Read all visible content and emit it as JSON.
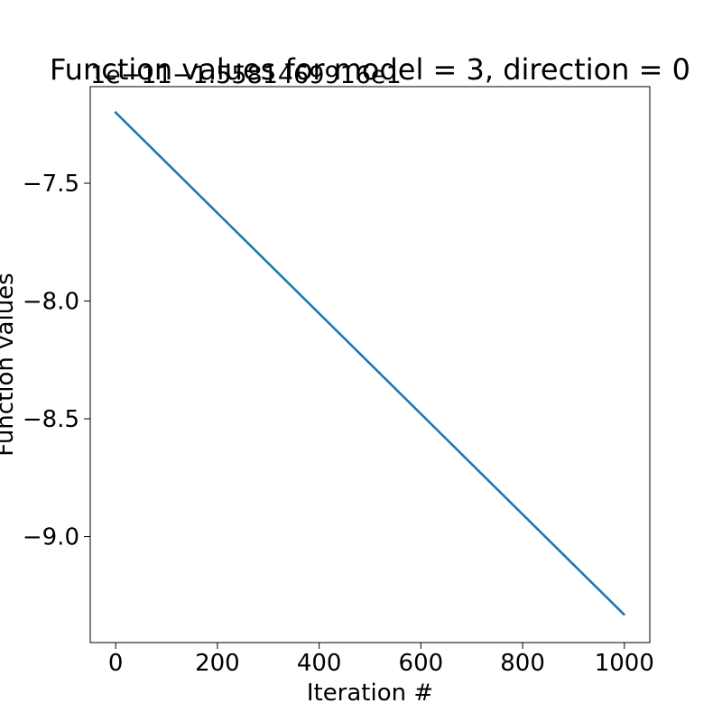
{
  "chart_data": {
    "type": "line",
    "title": "Function values for model = 3, direction = 0",
    "xlabel": "Iteration #",
    "ylabel": "Function values",
    "offset_text": "1e−11−1.5581469916e1",
    "xlim": [
      -50,
      1050
    ],
    "ylim": [
      -9.45,
      -7.09
    ],
    "x_ticks": [
      0,
      200,
      400,
      600,
      800,
      1000
    ],
    "x_tick_labels": [
      "0",
      "200",
      "400",
      "600",
      "800",
      "1000"
    ],
    "y_ticks": [
      -7.5,
      -8.0,
      -8.5,
      -9.0
    ],
    "y_tick_labels": [
      "−7.5",
      "−8.0",
      "−8.5",
      "−9.0"
    ],
    "grid": false,
    "legend": "none",
    "series": [
      {
        "color": "#1f77b4",
        "x": [
          0,
          999
        ],
        "y": [
          -7.2,
          -9.33
        ]
      }
    ]
  }
}
